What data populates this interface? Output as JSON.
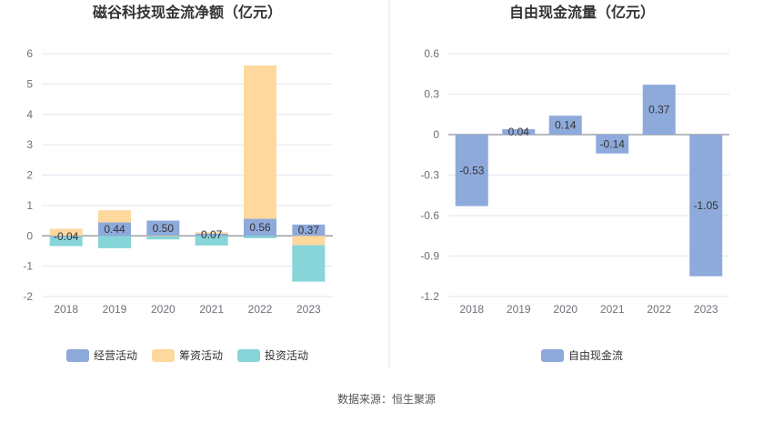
{
  "source": "数据来源：恒生聚源",
  "chart_data": [
    {
      "type": "bar",
      "stacked": true,
      "title": "磁谷科技现金流净额（亿元）",
      "categories": [
        "2018",
        "2019",
        "2020",
        "2021",
        "2022",
        "2023"
      ],
      "ylim": [
        -2,
        6
      ],
      "yticks": [
        -2,
        -1,
        0,
        1,
        2,
        3,
        4,
        5,
        6
      ],
      "grid": true,
      "legend_position": "bottom",
      "series": [
        {
          "name": "经营活动",
          "color": "#8eaadb",
          "values": [
            -0.04,
            0.44,
            0.5,
            0.07,
            0.56,
            0.37
          ],
          "labels": [
            "-0.04",
            "0.44",
            "0.50",
            "0.07",
            "0.56",
            "0.37"
          ]
        },
        {
          "name": "筹资活动",
          "color": "#fed89c",
          "values": [
            0.23,
            0.4,
            -0.02,
            0.05,
            5.05,
            -0.31
          ]
        },
        {
          "name": "投资活动",
          "color": "#87d5d9",
          "values": [
            -0.3,
            -0.41,
            -0.1,
            -0.32,
            -0.08,
            -1.2
          ]
        }
      ]
    },
    {
      "type": "bar",
      "title": "自由现金流量（亿元）",
      "categories": [
        "2018",
        "2019",
        "2020",
        "2021",
        "2022",
        "2023"
      ],
      "ylim": [
        -1.2,
        0.6
      ],
      "yticks": [
        -1.2,
        -0.9,
        -0.6,
        -0.3,
        0,
        0.3,
        0.6
      ],
      "ytick_labels": [
        "-1.2",
        "-0.9",
        "-0.6",
        "-0.3",
        "0",
        "0.3",
        "0.6"
      ],
      "grid": true,
      "legend_position": "bottom",
      "series": [
        {
          "name": "自由现金流",
          "color": "#8eaadb",
          "values": [
            -0.53,
            0.04,
            0.14,
            -0.14,
            0.37,
            -1.05
          ],
          "labels": [
            "-0.53",
            "0.04",
            "0.14",
            "-0.14",
            "0.37",
            "-1.05"
          ]
        }
      ]
    }
  ]
}
